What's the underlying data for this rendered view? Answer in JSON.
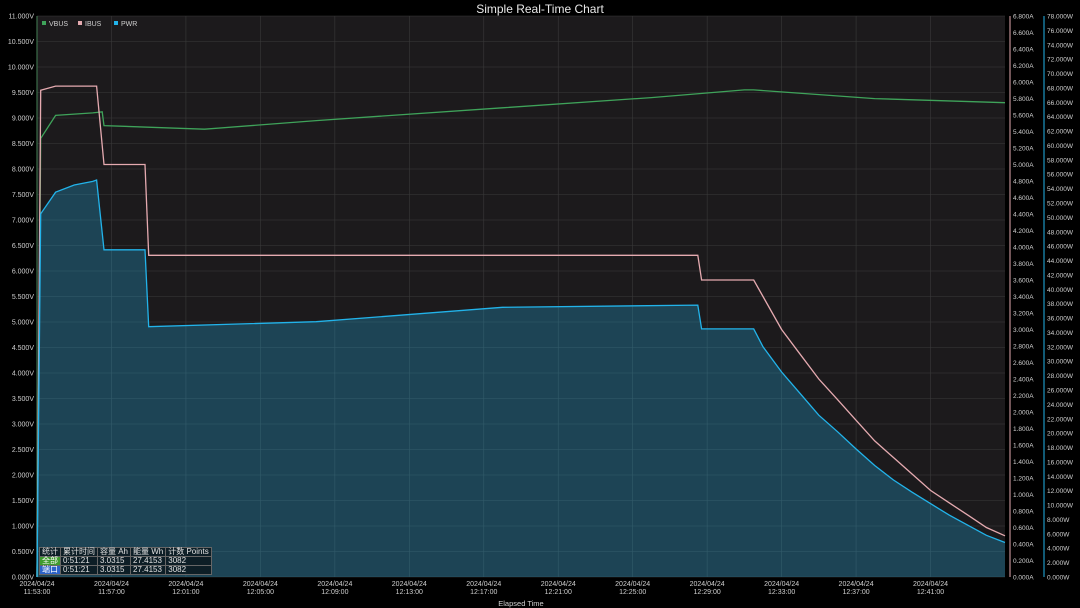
{
  "window": {
    "title": "Simple Real-Time Chart"
  },
  "chart_data": {
    "type": "line",
    "title": "Simple Real-Time Chart",
    "xlabel": "Elapsed Time",
    "x_ticks": [
      [
        "2024/04/24",
        "11:53:00"
      ],
      [
        "2024/04/24",
        "11:57:00"
      ],
      [
        "2024/04/24",
        "12:01:00"
      ],
      [
        "2024/04/24",
        "12:05:00"
      ],
      [
        "2024/04/24",
        "12:09:00"
      ],
      [
        "2024/04/24",
        "12:13:00"
      ],
      [
        "2024/04/24",
        "12:17:00"
      ],
      [
        "2024/04/24",
        "12:21:00"
      ],
      [
        "2024/04/24",
        "12:25:00"
      ],
      [
        "2024/04/24",
        "12:29:00"
      ],
      [
        "2024/04/24",
        "12:33:00"
      ],
      [
        "2024/04/24",
        "12:37:00"
      ],
      [
        "2024/04/24",
        "12:41:00"
      ]
    ],
    "x_range_minutes": [
      0,
      52
    ],
    "axes": {
      "left": {
        "unit": "V",
        "min": 0,
        "max": 11,
        "step": 0.5,
        "decimals": 3
      },
      "right1": {
        "unit": "A",
        "min": 0,
        "max": 6.8,
        "step": 0.2,
        "decimals": 3
      },
      "right2": {
        "unit": "W",
        "min": 0,
        "max": 78,
        "step": 2,
        "decimals": 3
      }
    },
    "legend": {
      "placement": "top-left"
    },
    "grid": true,
    "series": [
      {
        "name": "VBUS",
        "axis": "left",
        "color": "#3fa35a",
        "x": [
          0,
          0.2,
          1,
          3,
          3.5,
          3.6,
          9,
          15,
          25,
          33,
          38,
          38.5,
          45,
          52
        ],
        "y": [
          0,
          8.6,
          9.05,
          9.1,
          9.12,
          8.85,
          8.78,
          8.95,
          9.2,
          9.4,
          9.55,
          9.55,
          9.38,
          9.3
        ]
      },
      {
        "name": "IBUS",
        "axis": "right1",
        "color": "#e5aab0",
        "x": [
          0,
          0.2,
          1,
          3,
          3.2,
          3.6,
          5.8,
          6,
          15,
          25,
          35.5,
          35.7,
          38.5,
          39,
          40,
          41,
          42,
          43,
          44,
          45,
          46,
          47,
          48,
          49,
          50,
          51,
          52
        ],
        "y": [
          0,
          5.9,
          5.95,
          5.95,
          5.95,
          5.0,
          5.0,
          3.9,
          3.9,
          3.9,
          3.9,
          3.6,
          3.6,
          3.4,
          3.0,
          2.7,
          2.4,
          2.15,
          1.9,
          1.65,
          1.45,
          1.25,
          1.05,
          0.9,
          0.75,
          0.6,
          0.5
        ]
      },
      {
        "name": "PWR",
        "axis": "right2",
        "color": "#22b3ea",
        "x": [
          0,
          0.2,
          1,
          2,
          3,
          3.2,
          3.6,
          5.8,
          6,
          15,
          25,
          35.5,
          35.7,
          38.5,
          39,
          40,
          41,
          42,
          43,
          44,
          45,
          46,
          47,
          48,
          49,
          50,
          51,
          52
        ],
        "y": [
          0,
          50.5,
          53.5,
          54.5,
          55,
          55.2,
          45.5,
          45.5,
          34.8,
          35.5,
          37.5,
          37.8,
          34.5,
          34.5,
          32,
          28.5,
          25.5,
          22.5,
          20.2,
          17.8,
          15.5,
          13.5,
          11.8,
          10.2,
          8.6,
          7.2,
          5.8,
          4.8
        ]
      }
    ]
  },
  "stats": {
    "headers": [
      "统计",
      "累计时间",
      "容量 Ah",
      "能量 Wh",
      "计数 Points"
    ],
    "rows": [
      {
        "label": "全部",
        "time": "0:51:21",
        "ah": "3.0315",
        "wh": "27.4153",
        "points": "3082"
      },
      {
        "label": "端口",
        "time": "0:51:21",
        "ah": "3.0315",
        "wh": "27.4153",
        "points": "3082"
      }
    ]
  }
}
